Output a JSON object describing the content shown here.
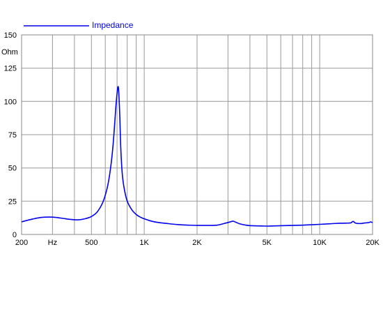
{
  "chart_data": {
    "type": "line",
    "xscale": "log",
    "xlim": [
      200,
      20000
    ],
    "ylim": [
      0,
      150
    ],
    "ylabel": "Ohm",
    "grid": true,
    "legend_position": "top-left",
    "x_tick_labels": [
      {
        "value": 200,
        "label": "200"
      },
      {
        "value": 300,
        "label": "Hz"
      },
      {
        "value": 500,
        "label": "500"
      },
      {
        "value": 1000,
        "label": "1K"
      },
      {
        "value": 2000,
        "label": "2K"
      },
      {
        "value": 5000,
        "label": "5K"
      },
      {
        "value": 10000,
        "label": "10K"
      },
      {
        "value": 20000,
        "label": "20K"
      }
    ],
    "x_gridlines": [
      300,
      400,
      500,
      600,
      700,
      800,
      900,
      1000,
      2000,
      3000,
      4000,
      5000,
      6000,
      7000,
      8000,
      9000,
      10000,
      20000
    ],
    "y_ticks": [
      0,
      25,
      50,
      75,
      100,
      125,
      150
    ],
    "series": [
      {
        "name": "Impedance",
        "color": "#0000ee",
        "x": [
          200,
          230,
          260,
          300,
          340,
          380,
          420,
          460,
          500,
          540,
          580,
          610,
          630,
          650,
          665,
          680,
          690,
          700,
          708,
          715,
          725,
          735,
          750,
          770,
          800,
          850,
          900,
          950,
          1000,
          1100,
          1200,
          1400,
          1600,
          1800,
          2000,
          2300,
          2600,
          2900,
          3100,
          3200,
          3300,
          3500,
          3800,
          4200,
          5000,
          6000,
          7000,
          8000,
          9000,
          10000,
          11000,
          12000,
          13000,
          14000,
          15000,
          15500,
          16000,
          17000,
          18000,
          19000,
          19500,
          20000
        ],
        "y": [
          9.5,
          11.5,
          12.8,
          13.0,
          12.2,
          11.3,
          11.0,
          11.8,
          13.5,
          17.0,
          24.0,
          33.0,
          42.0,
          55.0,
          68.0,
          85.0,
          97.0,
          106.0,
          111.0,
          108.0,
          90.0,
          65.0,
          45.0,
          34.0,
          25.0,
          18.5,
          15.0,
          13.0,
          11.8,
          10.0,
          9.0,
          8.0,
          7.3,
          7.0,
          6.8,
          6.8,
          7.0,
          8.5,
          9.5,
          10.0,
          9.4,
          8.0,
          7.0,
          6.5,
          6.3,
          6.6,
          6.8,
          7.0,
          7.3,
          7.6,
          7.9,
          8.2,
          8.4,
          8.5,
          8.7,
          9.8,
          8.5,
          8.2,
          8.6,
          8.9,
          9.4,
          8.9
        ]
      }
    ]
  }
}
